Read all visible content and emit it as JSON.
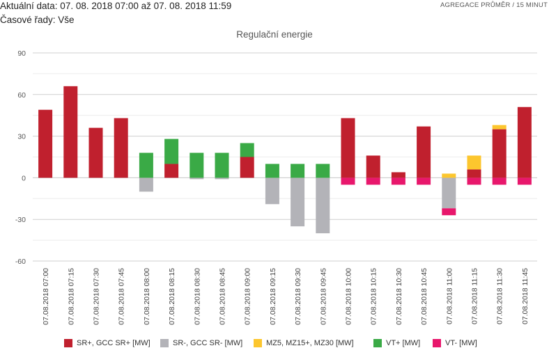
{
  "header": {
    "date_range": "Aktuální data: 07. 08. 2018 07:00 až 07. 08. 2018 11:59",
    "series_filter": "Časové řady: Vše",
    "aggregation": "AGREGACE PRŮMĚR / 15 MINUT"
  },
  "chart_data": {
    "type": "bar",
    "stacked": true,
    "title": "Regulační energie",
    "xlabel": "",
    "ylabel": "",
    "ylim": [
      -60,
      90
    ],
    "yticks": [
      90,
      60,
      30,
      0,
      -30,
      -60
    ],
    "grid": true,
    "legend_position": "bottom",
    "categories": [
      "07.08.2018 07:00",
      "07.08.2018 07:15",
      "07.08.2018 07:30",
      "07.08.2018 07:45",
      "07.08.2018 08:00",
      "07.08.2018 08:15",
      "07.08.2018 08:30",
      "07.08.2018 08:45",
      "07.08.2018 09:00",
      "07.08.2018 09:15",
      "07.08.2018 09:30",
      "07.08.2018 09:45",
      "07.08.2018 10:00",
      "07.08.2018 10:15",
      "07.08.2018 10:30",
      "07.08.2018 10:45",
      "07.08.2018 11:00",
      "07.08.2018 11:15",
      "07.08.2018 11:30",
      "07.08.2018 11:45"
    ],
    "series": [
      {
        "name": "SR+, GCC SR+ [MW]",
        "color": "#c0202e",
        "values": [
          49,
          66,
          36,
          43,
          0,
          10,
          0,
          0,
          15,
          0,
          0,
          0,
          43,
          16,
          4,
          37,
          0,
          6,
          35,
          51
        ]
      },
      {
        "name": "SR-, GCC SR- [MW]",
        "color": "#b3b3b8",
        "values": [
          0,
          0,
          0,
          0,
          -10,
          0,
          -1,
          -1,
          0,
          -19,
          -35,
          -40,
          0,
          0,
          0,
          0,
          -22,
          0,
          0,
          0
        ]
      },
      {
        "name": "MZ5, MZ15+, MZ30 [MW]",
        "color": "#fcc62e",
        "values": [
          0,
          0,
          0,
          0,
          0,
          0,
          0,
          0,
          0,
          0,
          0,
          0,
          0,
          0,
          0,
          0,
          3,
          10,
          3,
          0
        ]
      },
      {
        "name": "VT+ [MW]",
        "color": "#3aaa46",
        "values": [
          0,
          0,
          0,
          0,
          18,
          18,
          18,
          18,
          10,
          10,
          10,
          10,
          0,
          0,
          0,
          0,
          0,
          0,
          0,
          0
        ]
      },
      {
        "name": "VT- [MW]",
        "color": "#e8176c",
        "values": [
          0,
          0,
          0,
          0,
          0,
          0,
          0,
          0,
          0,
          0,
          0,
          0,
          -5,
          -5,
          -5,
          -5,
          -5,
          -5,
          -5,
          -5
        ]
      }
    ]
  }
}
